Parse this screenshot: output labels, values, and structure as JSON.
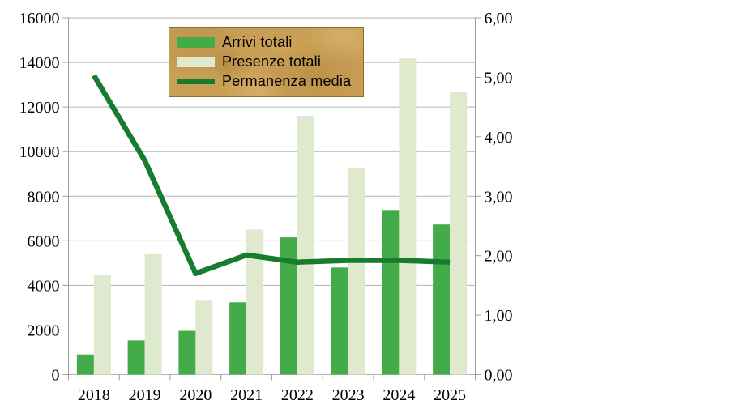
{
  "chart_data": {
    "type": "bar",
    "subtype": "grouped-bars-with-line",
    "title": "",
    "categories": [
      "2018",
      "2019",
      "2020",
      "2021",
      "2022",
      "2023",
      "2024",
      "2025"
    ],
    "series": [
      {
        "name": "Arrivi totali",
        "type": "bar",
        "axis": "left",
        "color": "#43ab47",
        "values": [
          900,
          1530,
          1960,
          3240,
          6150,
          4800,
          7380,
          6730
        ]
      },
      {
        "name": "Presenze totali",
        "type": "bar",
        "axis": "left",
        "color": "#dfe9cd",
        "values": [
          4470,
          5400,
          3310,
          6500,
          11600,
          9240,
          14180,
          12690
        ]
      },
      {
        "name": "Permanenza media",
        "type": "line",
        "axis": "right",
        "color": "#177c2f",
        "values": [
          5.03,
          3.6,
          1.7,
          2.01,
          1.89,
          1.92,
          1.92,
          1.89
        ]
      }
    ],
    "left_axis": {
      "min": 0,
      "max": 16000,
      "step": 2000,
      "tick_labels": [
        "0",
        "2000",
        "4000",
        "6000",
        "8000",
        "10000",
        "12000",
        "14000",
        "16000"
      ]
    },
    "right_axis": {
      "min": 0,
      "max": 6,
      "step": 1,
      "tick_labels": [
        "0,00",
        "1,00",
        "2,00",
        "3,00",
        "4,00",
        "5,00",
        "6,00"
      ]
    },
    "legend_position": "top-center",
    "grid": true
  },
  "colors": {
    "background": "#ffffff",
    "gridline": "#b3b3b3",
    "axis_line": "#9e9e9e",
    "axis_text": "#000000",
    "legend_background": "#c99f55",
    "legend_border": "#8a6a35",
    "legend_text": "#000000"
  }
}
